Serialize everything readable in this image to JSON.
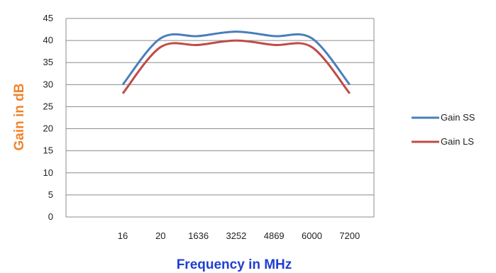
{
  "chart_data": {
    "type": "line",
    "xlabel": "Frequency in MHz",
    "ylabel": "Gain in dB",
    "categories": [
      "16",
      "20",
      "1636",
      "3252",
      "4869",
      "6000",
      "7200"
    ],
    "ylim": [
      0,
      45
    ],
    "yticks": [
      0,
      5,
      10,
      15,
      20,
      25,
      30,
      35,
      40,
      45
    ],
    "grid": "horizontal",
    "legend_position": "right",
    "series": [
      {
        "name": "Gain SS",
        "color": "#4a7ebb",
        "values": [
          30,
          40.5,
          41,
          42,
          41,
          40.5,
          30
        ]
      },
      {
        "name": "Gain LS",
        "color": "#be4b48",
        "values": [
          28,
          38.5,
          39,
          40,
          39,
          38.5,
          28
        ]
      }
    ],
    "colors": {
      "xlabel": "#1f3fd1",
      "ylabel": "#f0842a",
      "grid": "#8c8c8c",
      "plot_border": "#8c8c8c"
    }
  }
}
